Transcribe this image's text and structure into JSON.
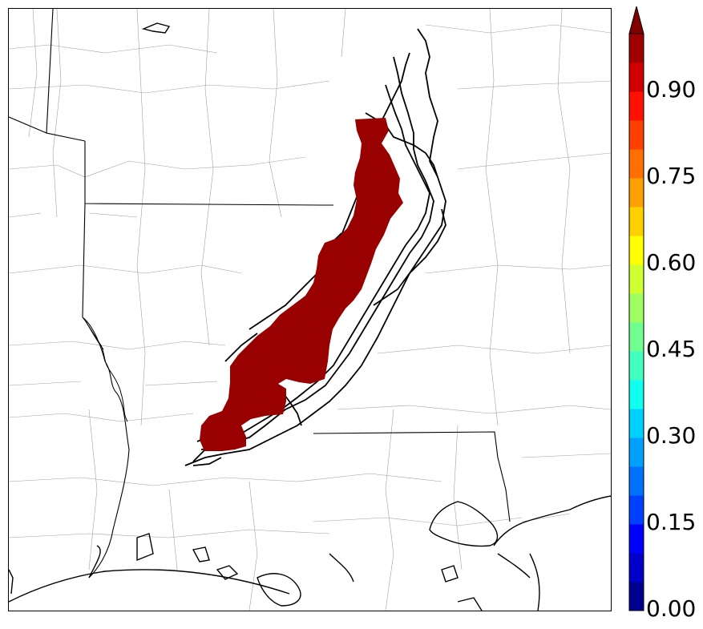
{
  "map": {
    "region": "Lower Mississippi Valley / Gulf Coast",
    "probability_swath_color": "#990000",
    "line_color": "#000000",
    "county_line_color": "#9a9a9a"
  },
  "colorbar": {
    "min": 0.0,
    "max": 1.0,
    "extend": "max",
    "levels": [
      0.0,
      0.05,
      0.1,
      0.15,
      0.2,
      0.25,
      0.3,
      0.35,
      0.4,
      0.45,
      0.5,
      0.55,
      0.6,
      0.65,
      0.7,
      0.75,
      0.8,
      0.85,
      0.9,
      0.95,
      1.0
    ],
    "colors": [
      "#00008f",
      "#0000c8",
      "#0000ff",
      "#0040ff",
      "#0070ff",
      "#00a0ff",
      "#00d0ff",
      "#10ffef",
      "#40ffbf",
      "#70ff8f",
      "#a0ff60",
      "#cfff30",
      "#ffff00",
      "#ffd000",
      "#ffa000",
      "#ff7000",
      "#ff4000",
      "#ff1000",
      "#d00000",
      "#a00000"
    ],
    "extend_color": "#800000",
    "tick_labels": [
      "0.00",
      "0.15",
      "0.30",
      "0.45",
      "0.60",
      "0.75",
      "0.90"
    ],
    "tick_values": [
      0.0,
      0.15,
      0.3,
      0.45,
      0.6,
      0.75,
      0.9
    ]
  }
}
